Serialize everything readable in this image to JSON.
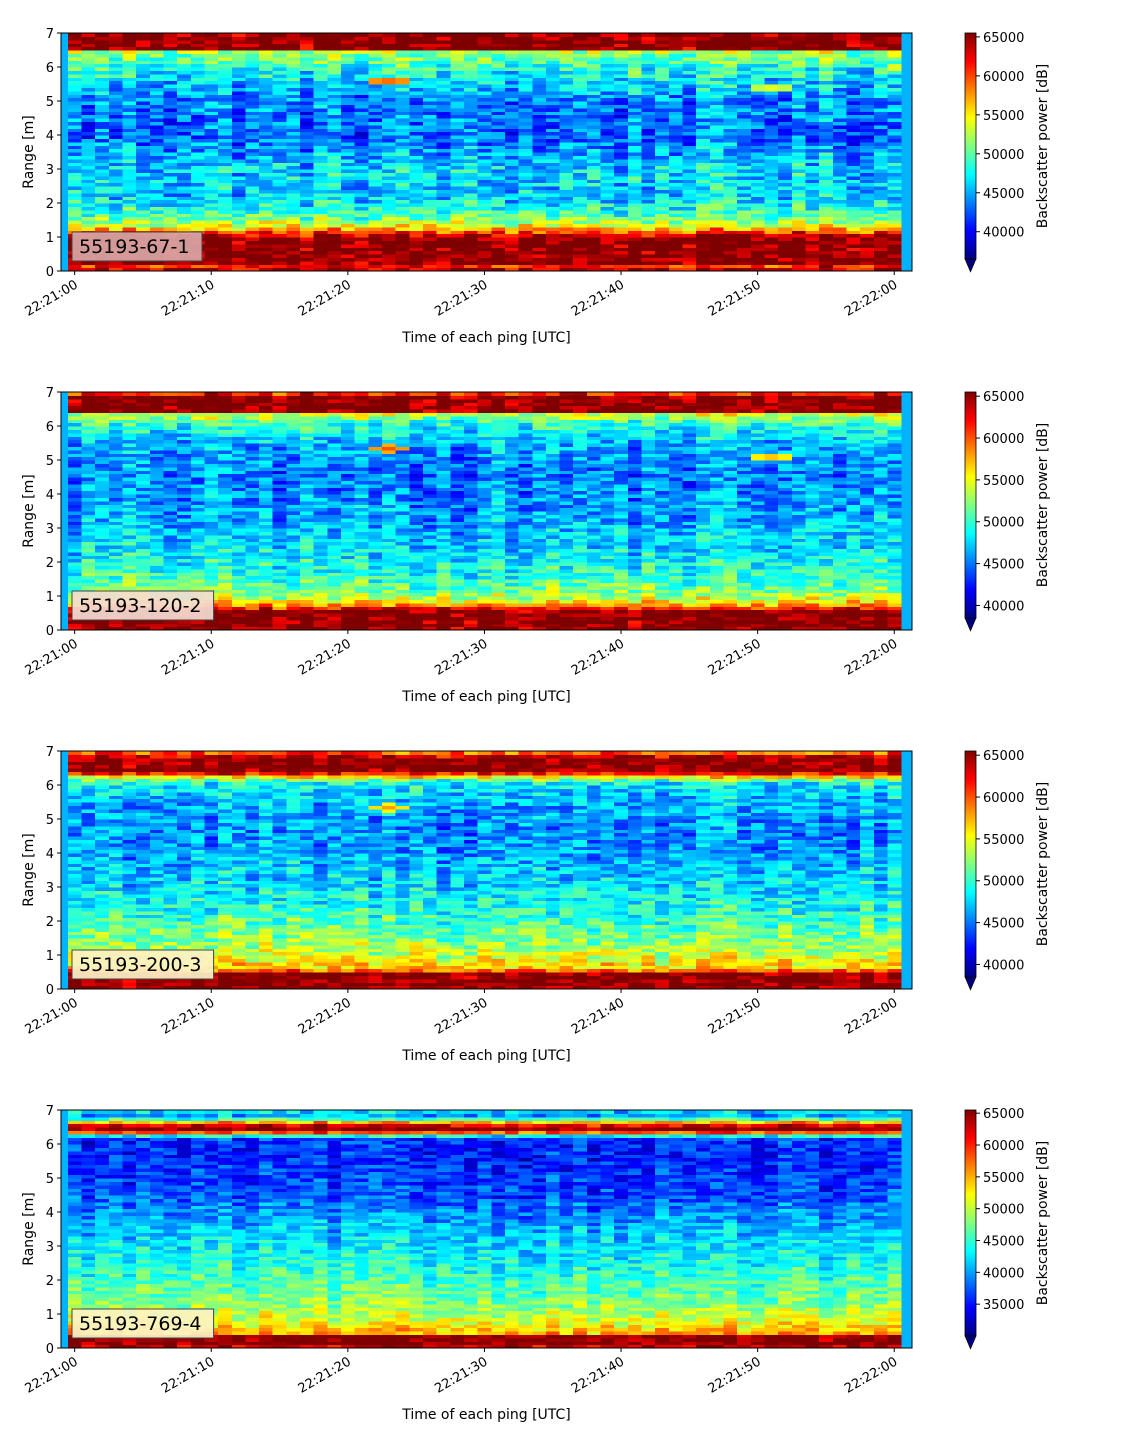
{
  "colormap": "jet",
  "colormap_stops": [
    "#00007f",
    "#0000ff",
    "#0080ff",
    "#00ffff",
    "#80ff80",
    "#ffff00",
    "#ff8000",
    "#ff0000",
    "#7f0000"
  ],
  "chart_data": [
    {
      "type": "heatmap",
      "label": "55193-67-1",
      "label_box_color": "#d9a6a6",
      "xlabel": "Time of each ping [UTC]",
      "ylabel": "Range [m]",
      "colorbar_label": "Backscatter power [dB]",
      "x_ticks": [
        "22:21:00",
        "22:21:10",
        "22:21:20",
        "22:21:30",
        "22:21:40",
        "22:21:50",
        "22:22:00"
      ],
      "y_ticks": [
        "0",
        "1",
        "2",
        "3",
        "4",
        "5",
        "6",
        "7"
      ],
      "colorbar_ticks": [
        "40000",
        "45000",
        "50000",
        "55000",
        "60000",
        "65000"
      ],
      "xlim_seconds": [
        -1,
        61.3
      ],
      "ylim": [
        0,
        7
      ],
      "vmin": 36500,
      "vmax": 65500,
      "pings": 61,
      "range_profile": [
        [
          0.0,
          65000
        ],
        [
          0.2,
          60000
        ],
        [
          0.25,
          65500
        ],
        [
          0.95,
          65500
        ],
        [
          1.1,
          62000
        ],
        [
          1.3,
          55000
        ],
        [
          1.6,
          50000
        ],
        [
          2.2,
          46000
        ],
        [
          3.0,
          46500
        ],
        [
          4.0,
          43000
        ],
        [
          5.0,
          44000
        ],
        [
          5.8,
          47500
        ],
        [
          6.2,
          50000
        ],
        [
          6.45,
          52000
        ],
        [
          6.55,
          65500
        ],
        [
          7.0,
          65500
        ]
      ],
      "noise": 4200,
      "features": [
        {
          "t": 23,
          "r": 5.6,
          "v": 60000
        },
        {
          "t": 51,
          "r": 5.4,
          "v": 55000
        },
        {
          "t": 61,
          "r": 6.0,
          "v": 56000
        }
      ]
    },
    {
      "type": "heatmap",
      "label": "55193-120-2",
      "label_box_color": "#f3dcd2",
      "xlabel": "Time of each ping [UTC]",
      "ylabel": "Range [m]",
      "colorbar_label": "Backscatter power [dB]",
      "x_ticks": [
        "22:21:00",
        "22:21:10",
        "22:21:20",
        "22:21:30",
        "22:21:40",
        "22:21:50",
        "22:22:00"
      ],
      "y_ticks": [
        "0",
        "1",
        "2",
        "3",
        "4",
        "5",
        "6",
        "7"
      ],
      "colorbar_ticks": [
        "40000",
        "45000",
        "50000",
        "55000",
        "60000",
        "65000"
      ],
      "xlim_seconds": [
        -1,
        61.3
      ],
      "ylim": [
        0,
        7
      ],
      "vmin": 38500,
      "vmax": 65500,
      "pings": 61,
      "range_profile": [
        [
          0.0,
          65000
        ],
        [
          0.1,
          65500
        ],
        [
          0.55,
          65500
        ],
        [
          0.75,
          58000
        ],
        [
          1.0,
          53000
        ],
        [
          1.5,
          50000
        ],
        [
          2.5,
          47500
        ],
        [
          3.5,
          46000
        ],
        [
          4.5,
          45000
        ],
        [
          5.5,
          46500
        ],
        [
          6.1,
          50000
        ],
        [
          6.35,
          54000
        ],
        [
          6.45,
          65500
        ],
        [
          6.85,
          65500
        ],
        [
          7.0,
          60000
        ]
      ],
      "noise": 3600,
      "features": [
        {
          "t": 23,
          "r": 5.35,
          "v": 60000
        },
        {
          "t": 51,
          "r": 5.1,
          "v": 58000
        }
      ]
    },
    {
      "type": "heatmap",
      "label": "55193-200-3",
      "label_box_color": "#fbf2c8",
      "xlabel": "Time of each ping [UTC]",
      "ylabel": "Range [m]",
      "colorbar_label": "Backscatter power [dB]",
      "x_ticks": [
        "22:21:00",
        "22:21:10",
        "22:21:20",
        "22:21:30",
        "22:21:40",
        "22:21:50",
        "22:22:00"
      ],
      "y_ticks": [
        "0",
        "1",
        "2",
        "3",
        "4",
        "5",
        "6",
        "7"
      ],
      "colorbar_ticks": [
        "40000",
        "45000",
        "50000",
        "55000",
        "60000",
        "65000"
      ],
      "xlim_seconds": [
        -1,
        61.3
      ],
      "ylim": [
        0,
        7
      ],
      "vmin": 38500,
      "vmax": 65500,
      "pings": 61,
      "range_profile": [
        [
          0.0,
          65000
        ],
        [
          0.1,
          65500
        ],
        [
          0.45,
          65500
        ],
        [
          0.6,
          57000
        ],
        [
          0.9,
          55000
        ],
        [
          1.5,
          52000
        ],
        [
          2.5,
          49000
        ],
        [
          3.5,
          47000
        ],
        [
          4.5,
          45500
        ],
        [
          5.5,
          46500
        ],
        [
          6.1,
          49000
        ],
        [
          6.3,
          58000
        ],
        [
          6.4,
          65500
        ],
        [
          6.8,
          65500
        ],
        [
          7.0,
          58000
        ]
      ],
      "noise": 3600,
      "features": [
        {
          "t": 23,
          "r": 5.35,
          "v": 58000
        }
      ]
    },
    {
      "type": "heatmap",
      "label": "55193-769-4",
      "label_box_color": "#fbf3c6",
      "xlabel": "Time of each ping [UTC]",
      "ylabel": "Range [m]",
      "colorbar_label": "Backscatter power [dB]",
      "x_ticks": [
        "22:21:00",
        "22:21:10",
        "22:21:20",
        "22:21:30",
        "22:21:40",
        "22:21:50",
        "22:22:00"
      ],
      "y_ticks": [
        "0",
        "1",
        "2",
        "3",
        "4",
        "5",
        "6",
        "7"
      ],
      "colorbar_ticks": [
        "35000",
        "40000",
        "45000",
        "50000",
        "55000",
        "60000",
        "65000"
      ],
      "xlim_seconds": [
        -1,
        61.3
      ],
      "ylim": [
        0,
        7
      ],
      "vmin": 30000,
      "vmax": 65500,
      "pings": 61,
      "range_profile": [
        [
          0.0,
          62000
        ],
        [
          0.15,
          65500
        ],
        [
          0.35,
          65500
        ],
        [
          0.45,
          55000
        ],
        [
          0.7,
          52000
        ],
        [
          1.0,
          50000
        ],
        [
          1.5,
          47000
        ],
        [
          2.5,
          44000
        ],
        [
          3.5,
          41000
        ],
        [
          4.5,
          37000
        ],
        [
          5.5,
          35500
        ],
        [
          6.2,
          36000
        ],
        [
          6.35,
          58000
        ],
        [
          6.45,
          65500
        ],
        [
          6.6,
          60000
        ],
        [
          6.8,
          40000
        ],
        [
          7.0,
          42000
        ]
      ],
      "noise": 3800,
      "features": []
    }
  ]
}
